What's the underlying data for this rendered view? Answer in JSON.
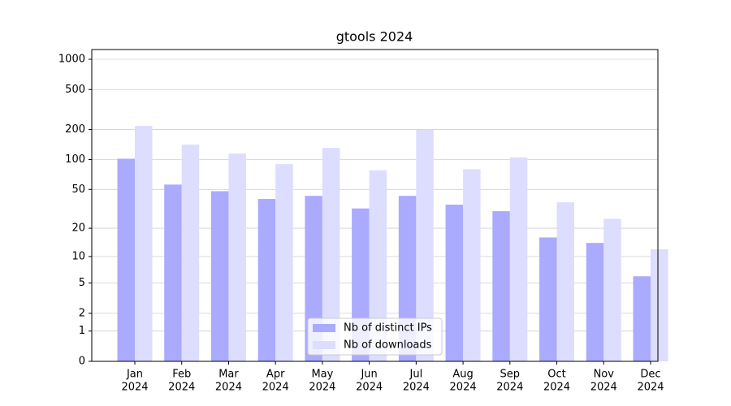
{
  "chart_data": {
    "type": "bar",
    "title": "gtools 2024",
    "categories": [
      [
        "Jan",
        "2024"
      ],
      [
        "Feb",
        "2024"
      ],
      [
        "Mar",
        "2024"
      ],
      [
        "Apr",
        "2024"
      ],
      [
        "May",
        "2024"
      ],
      [
        "Jun",
        "2024"
      ],
      [
        "Jul",
        "2024"
      ],
      [
        "Aug",
        "2024"
      ],
      [
        "Sep",
        "2024"
      ],
      [
        "Oct",
        "2024"
      ],
      [
        "Nov",
        "2024"
      ],
      [
        "Dec",
        "2024"
      ]
    ],
    "series": [
      {
        "name": "Nb of distinct IPs",
        "color": "#aaaaff",
        "values": [
          102,
          56,
          48,
          40,
          43,
          32,
          43,
          35,
          30,
          16,
          14,
          6
        ]
      },
      {
        "name": "Nb of downloads",
        "color": "#ddddff",
        "values": [
          217,
          141,
          115,
          90,
          131,
          78,
          198,
          80,
          105,
          37,
          25,
          12
        ]
      }
    ],
    "yscale": "log1p",
    "ylim": [
      0,
      1250
    ],
    "yticks": [
      0,
      1,
      2,
      5,
      10,
      20,
      50,
      100,
      200,
      500,
      1000
    ],
    "grid": true,
    "legend": "lower center"
  }
}
